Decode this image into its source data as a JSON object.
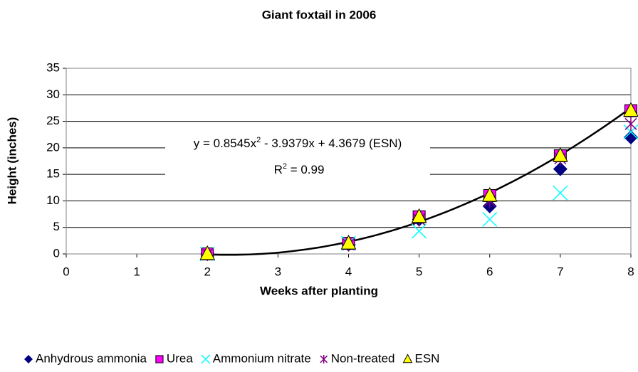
{
  "chart_data": {
    "type": "scatter",
    "title": "Giant foxtail in 2006",
    "xlabel": "Weeks after planting",
    "ylabel": "Height (inches)",
    "x": [
      2,
      4,
      5,
      6,
      7,
      8
    ],
    "xlim": [
      0,
      8
    ],
    "xticks": [
      0,
      1,
      2,
      3,
      4,
      5,
      6,
      7,
      8
    ],
    "ylim": [
      0,
      35
    ],
    "yticks": [
      0,
      5,
      10,
      15,
      20,
      25,
      30,
      35
    ],
    "grid": true,
    "legend": "bottom",
    "series": [
      {
        "name": "Anhydrous ammonia",
        "color": "#000080",
        "marker": "diamond",
        "values": [
          0,
          1.8,
          6.5,
          9,
          16,
          22
        ]
      },
      {
        "name": "Urea",
        "color": "#ff00ff",
        "marker": "square",
        "values": [
          0,
          2,
          7,
          11,
          18.5,
          27
        ]
      },
      {
        "name": "Ammonium nitrate",
        "color": "#00ffff",
        "marker": "x",
        "values": [
          0,
          2,
          4.3,
          6.5,
          11.5,
          23
        ]
      },
      {
        "name": "Non-treated",
        "color": "#800080",
        "marker": "star",
        "values": [
          0,
          1.8,
          6.5,
          10,
          18,
          24.5
        ]
      },
      {
        "name": "ESN",
        "color": "#ffff00",
        "marker": "triangle",
        "values": [
          0,
          2,
          7,
          11,
          18.5,
          27
        ]
      }
    ],
    "trendline": {
      "coefficients": [
        0.8545,
        -3.9379,
        4.3679
      ]
    },
    "annotations": {
      "equation": [
        "y = 0.8545x",
        "2",
        " - 3.9379x + 4.3679 (ESN)"
      ],
      "r_squared": [
        "R",
        "2",
        " = 0.99"
      ]
    }
  }
}
